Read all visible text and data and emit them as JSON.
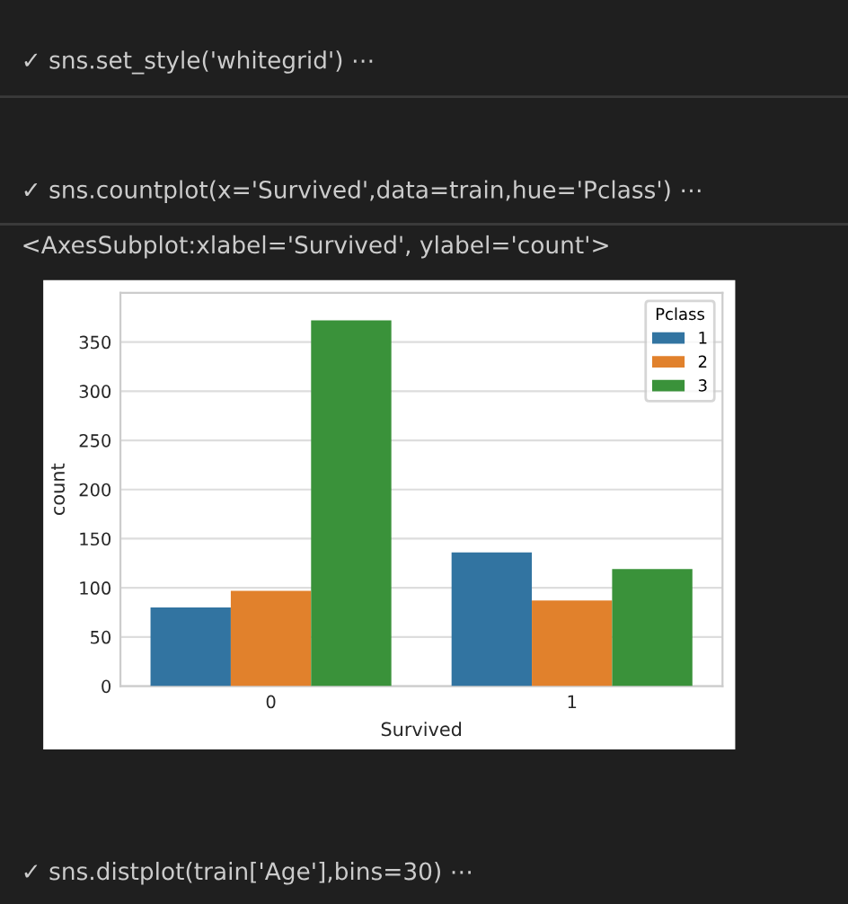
{
  "chart_data": {
    "type": "bar",
    "xlabel": "Survived",
    "ylabel": "count",
    "categories": [
      "0",
      "1"
    ],
    "series": [
      {
        "name": "1",
        "color": "#3274a1",
        "values": [
          80,
          136
        ]
      },
      {
        "name": "2",
        "color": "#e1812c",
        "values": [
          97,
          87
        ]
      },
      {
        "name": "3",
        "color": "#3a923a",
        "values": [
          372,
          119
        ]
      }
    ],
    "legend_title": "Pclass",
    "legend": "top right",
    "ylim": [
      0,
      400
    ],
    "yticks": [
      0,
      50,
      100,
      150,
      200,
      250,
      300,
      350
    ],
    "grid": "y",
    "annotations": [
      "✓ sns.set_style('whitegrid') ⋯",
      "✓ sns.countplot(x='Survived',data=train,hue='Pclass') ⋯",
      "<AxesSubplot:xlabel='Survived', ylabel='count'>",
      "✓ sns.distplot(train['Age'],bins=30) ⋯"
    ]
  }
}
